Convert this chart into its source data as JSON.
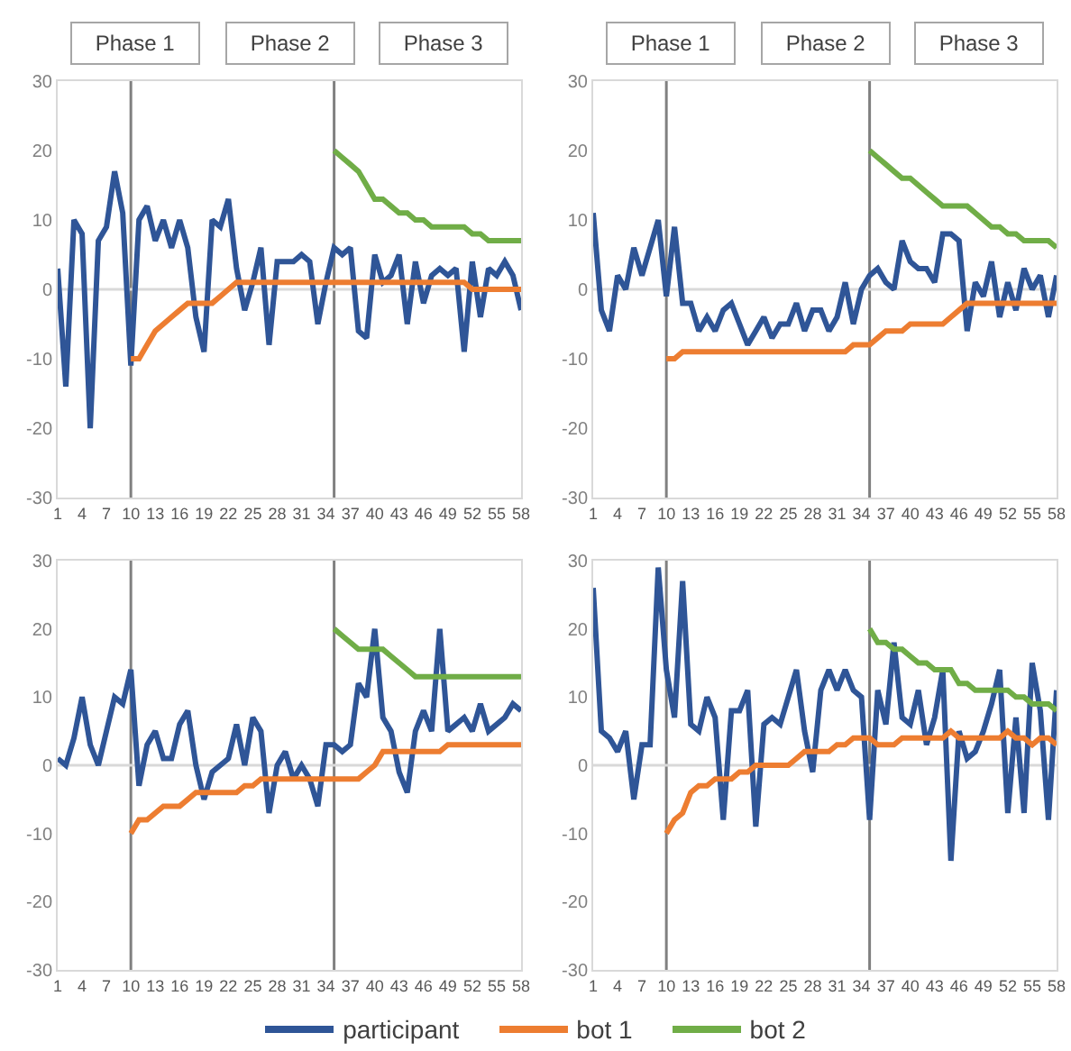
{
  "chart_data": [
    {
      "type": "line",
      "annotations": [
        "Phase 1",
        "Phase 2",
        "Phase 3"
      ],
      "x": [
        1,
        2,
        3,
        4,
        5,
        6,
        7,
        8,
        9,
        10,
        11,
        12,
        13,
        14,
        15,
        16,
        17,
        18,
        19,
        20,
        21,
        22,
        23,
        24,
        25,
        26,
        27,
        28,
        29,
        30,
        31,
        32,
        33,
        34,
        35,
        36,
        37,
        38,
        39,
        40,
        41,
        42,
        43,
        44,
        45,
        46,
        47,
        48,
        49,
        50,
        51,
        52,
        53,
        54,
        55,
        56,
        57,
        58
      ],
      "xlim": [
        1,
        58
      ],
      "xticks": [
        1,
        4,
        7,
        10,
        13,
        16,
        19,
        22,
        25,
        28,
        31,
        34,
        37,
        40,
        43,
        46,
        49,
        52,
        55,
        58
      ],
      "ylim": [
        -30,
        30
      ],
      "yticks": [
        -30,
        -20,
        -10,
        0,
        10,
        20,
        30
      ],
      "grid": false,
      "legend": "bottom",
      "ref_lines": [
        {
          "axis": "x",
          "value": 10,
          "color": "#808080"
        },
        {
          "axis": "x",
          "value": 35,
          "color": "#808080"
        },
        {
          "axis": "y",
          "value": 0,
          "color": "#d9d9d9"
        }
      ],
      "series": [
        {
          "name": "participant",
          "color": "#2f5597",
          "values": [
            3,
            -14,
            10,
            8,
            -20,
            7,
            9,
            17,
            11,
            -11,
            10,
            12,
            7,
            10,
            6,
            10,
            6,
            -4,
            -9,
            10,
            9,
            13,
            3,
            -3,
            1,
            6,
            -8,
            4,
            4,
            4,
            5,
            4,
            -5,
            1,
            6,
            5,
            6,
            -6,
            -7,
            5,
            1,
            2,
            5,
            -5,
            4,
            -2,
            2,
            3,
            2,
            3,
            -9,
            4,
            -4,
            3,
            2,
            4,
            2,
            -3
          ]
        },
        {
          "name": "bot 1",
          "color": "#ed7d31",
          "values": [
            null,
            null,
            null,
            null,
            null,
            null,
            null,
            null,
            null,
            -10,
            -10,
            -8,
            -6,
            -5,
            -4,
            -3,
            -2,
            -2,
            -2,
            -2,
            -1,
            0,
            1,
            1,
            1,
            1,
            1,
            1,
            1,
            1,
            1,
            1,
            1,
            1,
            1,
            1,
            1,
            1,
            1,
            1,
            1,
            1,
            1,
            1,
            1,
            1,
            1,
            1,
            1,
            1,
            1,
            0,
            0,
            0,
            0,
            0,
            0,
            0
          ]
        },
        {
          "name": "bot 2",
          "color": "#70ad47",
          "values": [
            null,
            null,
            null,
            null,
            null,
            null,
            null,
            null,
            null,
            null,
            null,
            null,
            null,
            null,
            null,
            null,
            null,
            null,
            null,
            null,
            null,
            null,
            null,
            null,
            null,
            null,
            null,
            null,
            null,
            null,
            null,
            null,
            null,
            null,
            20,
            19,
            18,
            17,
            15,
            13,
            13,
            12,
            11,
            11,
            10,
            10,
            9,
            9,
            9,
            9,
            9,
            8,
            8,
            7,
            7,
            7,
            7,
            7
          ]
        }
      ]
    },
    {
      "type": "line",
      "annotations": [
        "Phase 1",
        "Phase 2",
        "Phase 3"
      ],
      "x": [
        1,
        2,
        3,
        4,
        5,
        6,
        7,
        8,
        9,
        10,
        11,
        12,
        13,
        14,
        15,
        16,
        17,
        18,
        19,
        20,
        21,
        22,
        23,
        24,
        25,
        26,
        27,
        28,
        29,
        30,
        31,
        32,
        33,
        34,
        35,
        36,
        37,
        38,
        39,
        40,
        41,
        42,
        43,
        44,
        45,
        46,
        47,
        48,
        49,
        50,
        51,
        52,
        53,
        54,
        55,
        56,
        57,
        58
      ],
      "xlim": [
        1,
        58
      ],
      "xticks": [
        1,
        4,
        7,
        10,
        13,
        16,
        19,
        22,
        25,
        28,
        31,
        34,
        37,
        40,
        43,
        46,
        49,
        52,
        55,
        58
      ],
      "ylim": [
        -30,
        30
      ],
      "yticks": [
        -30,
        -20,
        -10,
        0,
        10,
        20,
        30
      ],
      "grid": false,
      "legend": "bottom",
      "ref_lines": [
        {
          "axis": "x",
          "value": 10,
          "color": "#808080"
        },
        {
          "axis": "x",
          "value": 35,
          "color": "#808080"
        },
        {
          "axis": "y",
          "value": 0,
          "color": "#d9d9d9"
        }
      ],
      "series": [
        {
          "name": "participant",
          "color": "#2f5597",
          "values": [
            11,
            -3,
            -6,
            2,
            0,
            6,
            2,
            6,
            10,
            -1,
            9,
            -2,
            -2,
            -6,
            -4,
            -6,
            -3,
            -2,
            -5,
            -8,
            -6,
            -4,
            -7,
            -5,
            -5,
            -2,
            -6,
            -3,
            -3,
            -6,
            -4,
            1,
            -5,
            0,
            2,
            3,
            1,
            0,
            7,
            4,
            3,
            3,
            1,
            8,
            8,
            7,
            -6,
            1,
            -1,
            4,
            -4,
            1,
            -3,
            3,
            0,
            2,
            -4,
            2
          ]
        },
        {
          "name": "bot 1",
          "color": "#ed7d31",
          "values": [
            null,
            null,
            null,
            null,
            null,
            null,
            null,
            null,
            null,
            -10,
            -10,
            -9,
            -9,
            -9,
            -9,
            -9,
            -9,
            -9,
            -9,
            -9,
            -9,
            -9,
            -9,
            -9,
            -9,
            -9,
            -9,
            -9,
            -9,
            -9,
            -9,
            -9,
            -8,
            -8,
            -8,
            -7,
            -6,
            -6,
            -6,
            -5,
            -5,
            -5,
            -5,
            -5,
            -4,
            -3,
            -2,
            -2,
            -2,
            -2,
            -2,
            -2,
            -2,
            -2,
            -2,
            -2,
            -2,
            -2
          ]
        },
        {
          "name": "bot 2",
          "color": "#70ad47",
          "values": [
            null,
            null,
            null,
            null,
            null,
            null,
            null,
            null,
            null,
            null,
            null,
            null,
            null,
            null,
            null,
            null,
            null,
            null,
            null,
            null,
            null,
            null,
            null,
            null,
            null,
            null,
            null,
            null,
            null,
            null,
            null,
            null,
            null,
            null,
            20,
            19,
            18,
            17,
            16,
            16,
            15,
            14,
            13,
            12,
            12,
            12,
            12,
            11,
            10,
            9,
            9,
            8,
            8,
            7,
            7,
            7,
            7,
            6
          ]
        }
      ]
    },
    {
      "type": "line",
      "x": [
        1,
        2,
        3,
        4,
        5,
        6,
        7,
        8,
        9,
        10,
        11,
        12,
        13,
        14,
        15,
        16,
        17,
        18,
        19,
        20,
        21,
        22,
        23,
        24,
        25,
        26,
        27,
        28,
        29,
        30,
        31,
        32,
        33,
        34,
        35,
        36,
        37,
        38,
        39,
        40,
        41,
        42,
        43,
        44,
        45,
        46,
        47,
        48,
        49,
        50,
        51,
        52,
        53,
        54,
        55,
        56,
        57,
        58
      ],
      "xlim": [
        1,
        58
      ],
      "xticks": [
        1,
        4,
        7,
        10,
        13,
        16,
        19,
        22,
        25,
        28,
        31,
        34,
        37,
        40,
        43,
        46,
        49,
        52,
        55,
        58
      ],
      "ylim": [
        -30,
        30
      ],
      "yticks": [
        -30,
        -20,
        -10,
        0,
        10,
        20,
        30
      ],
      "grid": false,
      "legend": "bottom",
      "ref_lines": [
        {
          "axis": "x",
          "value": 10,
          "color": "#808080"
        },
        {
          "axis": "x",
          "value": 35,
          "color": "#808080"
        },
        {
          "axis": "y",
          "value": 0,
          "color": "#d9d9d9"
        }
      ],
      "series": [
        {
          "name": "participant",
          "color": "#2f5597",
          "values": [
            1,
            0,
            4,
            10,
            3,
            0,
            5,
            10,
            9,
            14,
            -3,
            3,
            5,
            1,
            1,
            6,
            8,
            0,
            -5,
            -1,
            0,
            1,
            6,
            0,
            7,
            5,
            -7,
            0,
            2,
            -2,
            0,
            -2,
            -6,
            3,
            3,
            2,
            3,
            12,
            10,
            20,
            7,
            5,
            -1,
            -4,
            5,
            8,
            5,
            20,
            5,
            6,
            7,
            5,
            9,
            5,
            6,
            7,
            9,
            8
          ]
        },
        {
          "name": "bot 1",
          "color": "#ed7d31",
          "values": [
            null,
            null,
            null,
            null,
            null,
            null,
            null,
            null,
            null,
            -10,
            -8,
            -8,
            -7,
            -6,
            -6,
            -6,
            -5,
            -4,
            -4,
            -4,
            -4,
            -4,
            -4,
            -3,
            -3,
            -2,
            -2,
            -2,
            -2,
            -2,
            -2,
            -2,
            -2,
            -2,
            -2,
            -2,
            -2,
            -2,
            -1,
            0,
            2,
            2,
            2,
            2,
            2,
            2,
            2,
            2,
            3,
            3,
            3,
            3,
            3,
            3,
            3,
            3,
            3,
            3
          ]
        },
        {
          "name": "bot 2",
          "color": "#70ad47",
          "values": [
            null,
            null,
            null,
            null,
            null,
            null,
            null,
            null,
            null,
            null,
            null,
            null,
            null,
            null,
            null,
            null,
            null,
            null,
            null,
            null,
            null,
            null,
            null,
            null,
            null,
            null,
            null,
            null,
            null,
            null,
            null,
            null,
            null,
            null,
            20,
            19,
            18,
            17,
            17,
            17,
            17,
            16,
            15,
            14,
            13,
            13,
            13,
            13,
            13,
            13,
            13,
            13,
            13,
            13,
            13,
            13,
            13,
            13
          ]
        }
      ]
    },
    {
      "type": "line",
      "x": [
        1,
        2,
        3,
        4,
        5,
        6,
        7,
        8,
        9,
        10,
        11,
        12,
        13,
        14,
        15,
        16,
        17,
        18,
        19,
        20,
        21,
        22,
        23,
        24,
        25,
        26,
        27,
        28,
        29,
        30,
        31,
        32,
        33,
        34,
        35,
        36,
        37,
        38,
        39,
        40,
        41,
        42,
        43,
        44,
        45,
        46,
        47,
        48,
        49,
        50,
        51,
        52,
        53,
        54,
        55,
        56,
        57,
        58
      ],
      "xlim": [
        1,
        58
      ],
      "xticks": [
        1,
        4,
        7,
        10,
        13,
        16,
        19,
        22,
        25,
        28,
        31,
        34,
        37,
        40,
        43,
        46,
        49,
        52,
        55,
        58
      ],
      "ylim": [
        -30,
        30
      ],
      "yticks": [
        -30,
        -20,
        -10,
        0,
        10,
        20,
        30
      ],
      "grid": false,
      "legend": "bottom",
      "ref_lines": [
        {
          "axis": "x",
          "value": 10,
          "color": "#808080"
        },
        {
          "axis": "x",
          "value": 35,
          "color": "#808080"
        },
        {
          "axis": "y",
          "value": 0,
          "color": "#d9d9d9"
        }
      ],
      "series": [
        {
          "name": "participant",
          "color": "#2f5597",
          "values": [
            26,
            5,
            4,
            2,
            5,
            -5,
            3,
            3,
            29,
            14,
            7,
            27,
            6,
            5,
            10,
            7,
            -8,
            8,
            8,
            11,
            -9,
            6,
            7,
            6,
            10,
            14,
            5,
            -1,
            11,
            14,
            11,
            14,
            11,
            10,
            -8,
            11,
            6,
            18,
            7,
            6,
            11,
            3,
            7,
            14,
            -14,
            5,
            1,
            2,
            5,
            9,
            14,
            -7,
            7,
            -7,
            15,
            8,
            -8,
            11
          ]
        },
        {
          "name": "bot 1",
          "color": "#ed7d31",
          "values": [
            null,
            null,
            null,
            null,
            null,
            null,
            null,
            null,
            null,
            -10,
            -8,
            -7,
            -4,
            -3,
            -3,
            -2,
            -2,
            -2,
            -1,
            -1,
            0,
            0,
            0,
            0,
            0,
            1,
            2,
            2,
            2,
            2,
            3,
            3,
            4,
            4,
            4,
            3,
            3,
            3,
            4,
            4,
            4,
            4,
            4,
            4,
            5,
            4,
            4,
            4,
            4,
            4,
            4,
            5,
            4,
            4,
            3,
            4,
            4,
            3
          ]
        },
        {
          "name": "bot 2",
          "color": "#70ad47",
          "values": [
            null,
            null,
            null,
            null,
            null,
            null,
            null,
            null,
            null,
            null,
            null,
            null,
            null,
            null,
            null,
            null,
            null,
            null,
            null,
            null,
            null,
            null,
            null,
            null,
            null,
            null,
            null,
            null,
            null,
            null,
            null,
            null,
            null,
            null,
            20,
            18,
            18,
            17,
            17,
            16,
            15,
            15,
            14,
            14,
            14,
            12,
            12,
            11,
            11,
            11,
            11,
            11,
            10,
            10,
            9,
            9,
            9,
            8
          ]
        }
      ]
    }
  ]
}
